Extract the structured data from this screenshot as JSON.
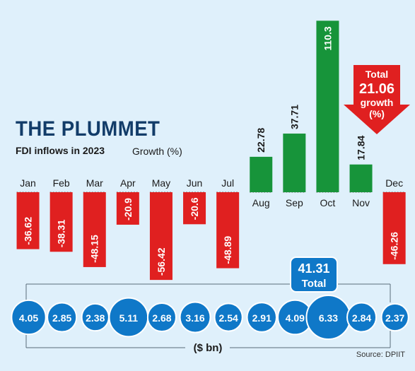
{
  "title": "THE PLUMMET",
  "subtitle": "FDI inflows in 2023",
  "growth_label": "Growth (%)",
  "source": "Source: DPIIT",
  "callout": {
    "line1": "Total",
    "line2": "21.06",
    "line3": "growth",
    "line4": "(%)"
  },
  "total_badge": {
    "value": "41.31",
    "label": "Total"
  },
  "units_label": "($ bn)",
  "colors": {
    "negative": "#e02020",
    "positive": "#17943a",
    "circle": "#0f78c8",
    "title": "#123c69",
    "background": "#dff0fb"
  },
  "chart_data": {
    "type": "bar",
    "title": "THE PLUMMET",
    "subtitle": "FDI inflows in 2023",
    "categories": [
      "Jan",
      "Feb",
      "Mar",
      "Apr",
      "May",
      "Jun",
      "Jul",
      "Aug",
      "Sep",
      "Oct",
      "Nov",
      "Dec"
    ],
    "series": [
      {
        "name": "Growth (%)",
        "values": [
          -36.62,
          -38.31,
          -48.15,
          -20.9,
          -56.42,
          -20.6,
          -48.89,
          22.78,
          37.71,
          110.3,
          17.84,
          -46.26
        ]
      },
      {
        "name": "($ bn)",
        "values": [
          4.05,
          2.85,
          2.38,
          5.11,
          2.68,
          3.16,
          2.54,
          2.91,
          4.09,
          6.33,
          2.84,
          2.37
        ]
      }
    ],
    "value_labels": [
      "-36.62",
      "-38.31",
      "-48.15",
      "-20.9",
      "-56.42",
      "-20.6",
      "-48.89",
      "22.78",
      "37.71",
      "110.3",
      "17.84",
      "-46.26"
    ],
    "inflow_labels": [
      "4.05",
      "2.85",
      "2.38",
      "5.11",
      "2.68",
      "3.16",
      "2.54",
      "2.91",
      "4.09",
      "6.33",
      "2.84",
      "2.37"
    ],
    "total_inflow": 41.31,
    "total_growth": 21.06
  }
}
